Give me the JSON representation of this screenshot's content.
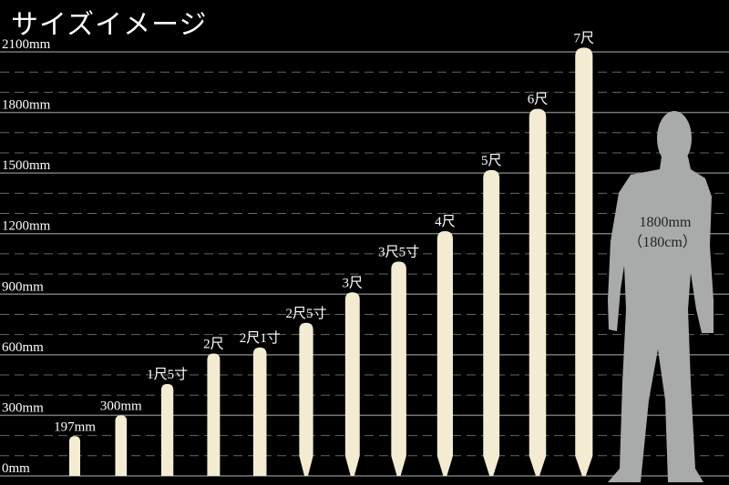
{
  "title": "サイズイメージ",
  "chart_data": {
    "type": "bar",
    "title": "サイズイメージ",
    "ylabel": "",
    "ylim": [
      0,
      2100
    ],
    "yticks": [
      "0mm",
      "300mm",
      "600mm",
      "900mm",
      "1200mm",
      "1500mm",
      "1800mm",
      "2100mm"
    ],
    "ytick_values": [
      0,
      300,
      600,
      900,
      1200,
      1500,
      1800,
      2100
    ],
    "minor_grid_step": 100,
    "grid": true,
    "categories": [
      "197mm",
      "300mm",
      "1尺5寸",
      "2尺",
      "2尺1寸",
      "2尺5寸",
      "3尺",
      "3尺5寸",
      "4尺",
      "5尺",
      "6尺",
      "7尺"
    ],
    "values": [
      197,
      300,
      455,
      606,
      636,
      758,
      909,
      1061,
      1212,
      1515,
      1818,
      2121
    ],
    "pointed_bottom": [
      false,
      false,
      false,
      false,
      false,
      true,
      true,
      true,
      true,
      true,
      true,
      true
    ],
    "bar_color": "#f3ecd2",
    "reference": {
      "label_line1": "1800mm",
      "label_line2": "（180cm）",
      "value": 1800,
      "color": "#a9aaaa"
    }
  }
}
